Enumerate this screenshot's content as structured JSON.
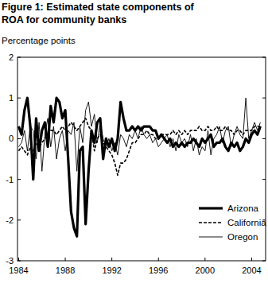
{
  "chart_data": {
    "type": "line",
    "title": "Figure 1: Estimated state components of ROA for community banks",
    "y_label": "Percentage points",
    "x": [
      1984,
      1984.25,
      1984.5,
      1984.75,
      1985,
      1985.25,
      1985.5,
      1985.75,
      1986,
      1986.25,
      1986.5,
      1986.75,
      1987,
      1987.25,
      1987.5,
      1987.75,
      1988,
      1988.25,
      1988.5,
      1988.75,
      1989,
      1989.25,
      1989.5,
      1989.75,
      1990,
      1990.25,
      1990.5,
      1990.75,
      1991,
      1991.25,
      1991.5,
      1991.75,
      1992,
      1992.25,
      1992.5,
      1992.75,
      1993,
      1993.25,
      1993.5,
      1993.75,
      1994,
      1994.25,
      1994.5,
      1994.75,
      1995,
      1995.25,
      1995.5,
      1995.75,
      1996,
      1996.25,
      1996.5,
      1996.75,
      1997,
      1997.25,
      1997.5,
      1997.75,
      1998,
      1998.25,
      1998.5,
      1998.75,
      1999,
      1999.25,
      1999.5,
      1999.75,
      2000,
      2000.25,
      2000.5,
      2000.75,
      2001,
      2001.25,
      2001.5,
      2001.75,
      2002,
      2002.25,
      2002.5,
      2002.75,
      2003,
      2003.25,
      2003.5,
      2003.75,
      2004,
      2004.25,
      2004.5,
      2004.75
    ],
    "series": [
      {
        "name": "Arizona",
        "color": "#000000",
        "line_style": "solid",
        "values": [
          0.3,
          0.1,
          0.7,
          1.0,
          0.3,
          -1.0,
          0.5,
          -0.3,
          0.2,
          0.4,
          -0.2,
          0.8,
          0.4,
          1.0,
          0.9,
          0.5,
          0.7,
          -0.5,
          -1.8,
          -2.2,
          -2.4,
          -0.3,
          -0.2,
          -2.1,
          -0.8,
          0.2,
          -0.1,
          0.4,
          0.5,
          -0.5,
          0.0,
          -0.2,
          0.0,
          -0.3,
          0.0,
          0.9,
          0.5,
          0.2,
          0.2,
          0.3,
          0.2,
          0.3,
          0.2,
          0.3,
          0.3,
          0.3,
          0.2,
          0.2,
          0.0,
          0.1,
          0.0,
          -0.1,
          0.0,
          -0.2,
          -0.1,
          -0.2,
          -0.1,
          -0.2,
          -0.1,
          -0.1,
          0.0,
          -0.1,
          -0.2,
          0.0,
          -0.1,
          0.0,
          0.1,
          -0.2,
          -0.1,
          -0.1,
          0.0,
          -0.2,
          -0.3,
          -0.1,
          -0.2,
          -0.1,
          -0.3,
          -0.2,
          0.0,
          -0.1,
          0.1,
          0.2,
          0.1,
          0.3
        ]
      },
      {
        "name": "California",
        "color": "#000000",
        "line_style": "dashed",
        "values": [
          -0.3,
          -0.2,
          -0.3,
          -0.4,
          -0.2,
          -0.3,
          -0.1,
          -0.2,
          -0.1,
          0.0,
          0.1,
          0.2,
          0.2,
          0.1,
          0.2,
          0.3,
          0.2,
          0.3,
          0.4,
          0.3,
          0.2,
          0.3,
          0.4,
          0.5,
          0.3,
          0.2,
          -0.3,
          0.0,
          0.1,
          -0.1,
          -0.2,
          -0.3,
          -0.4,
          -0.6,
          -0.9,
          -0.6,
          -0.6,
          -0.5,
          -0.3,
          -0.1,
          -0.1,
          0.0,
          0.1,
          0.1,
          0.2,
          0.1,
          0.1,
          0.0,
          0.0,
          0.1,
          0.1,
          0.1,
          0.1,
          0.2,
          0.1,
          0.2,
          0.1,
          0.2,
          0.1,
          0.2,
          0.2,
          0.2,
          0.3,
          0.2,
          0.2,
          0.3,
          0.2,
          0.2,
          0.3,
          0.2,
          0.2,
          0.3,
          0.2,
          0.2,
          0.1,
          0.2,
          0.2,
          0.1,
          0.2,
          0.2,
          0.2,
          0.3,
          0.3,
          0.3
        ]
      },
      {
        "name": "Oregon",
        "color": "#000000",
        "line_style": "solid",
        "values": [
          -0.2,
          -0.1,
          0.2,
          -0.3,
          0.3,
          0.2,
          -0.5,
          0.4,
          -0.8,
          0.1,
          0.5,
          -0.2,
          0.3,
          -0.5,
          0.0,
          0.2,
          -0.3,
          0.2,
          0.1,
          0.4,
          -0.8,
          0.3,
          -0.1,
          0.7,
          0.9,
          0.3,
          0.6,
          -0.1,
          0.4,
          0.0,
          -0.2,
          0.0,
          -0.3,
          -0.1,
          -0.4,
          0.1,
          0.0,
          -0.2,
          0.1,
          0.0,
          0.2,
          0.0,
          0.3,
          0.1,
          0.0,
          0.1,
          -0.1,
          0.0,
          -0.2,
          -0.1,
          0.0,
          0.1,
          -0.2,
          0.0,
          -0.3,
          0.1,
          -0.1,
          0.0,
          -0.2,
          0.1,
          -0.3,
          0.0,
          -0.4,
          -0.2,
          -0.3,
          0.2,
          -0.4,
          0.0,
          0.1,
          0.3,
          -0.1,
          0.2,
          0.3,
          -0.2,
          0.1,
          0.3,
          0.1,
          0.0,
          1.0,
          0.0,
          0.2,
          0.4,
          0.2,
          0.4
        ]
      }
    ],
    "xlim": [
      1983.9,
      2005.2
    ],
    "xticks": [
      1984,
      1988,
      1992,
      1996,
      2000,
      2004
    ],
    "ylim": [
      -3,
      2
    ],
    "yticks": [
      -3,
      -2,
      -1,
      0,
      1,
      2
    ],
    "legend": "lower right",
    "grid": false
  }
}
